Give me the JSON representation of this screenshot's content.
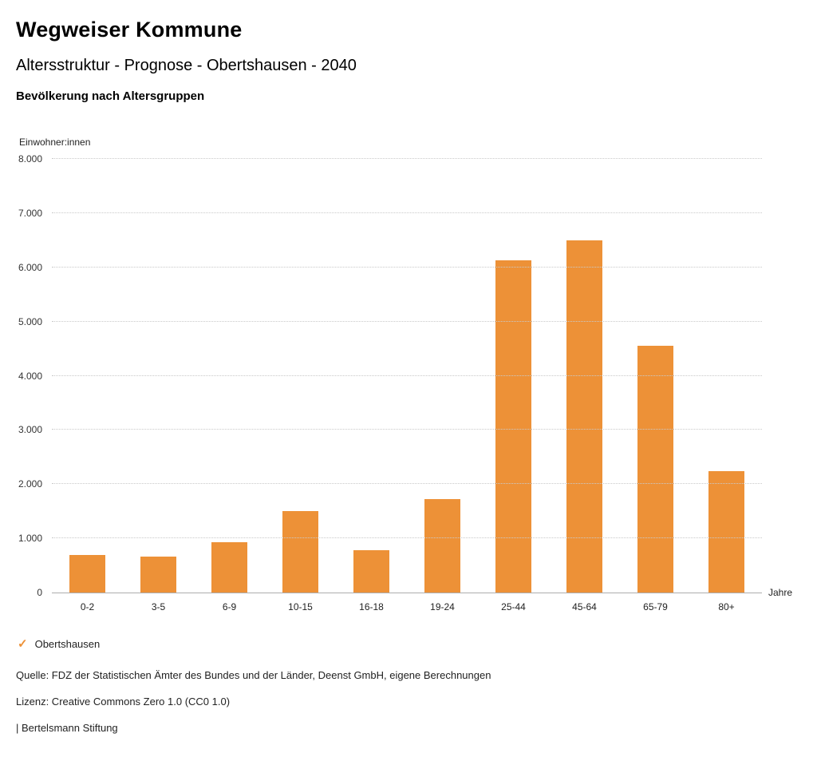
{
  "header": {
    "title": "Wegweiser Kommune",
    "subtitle": "Altersstruktur - Prognose - Obertshausen - 2040",
    "section_title": "Bevölkerung nach Altersgruppen"
  },
  "chart_data": {
    "type": "bar",
    "title": "Bevölkerung nach Altersgruppen",
    "ylabel": "Einwohner:innen",
    "xlabel": "Jahre",
    "categories": [
      "0-2",
      "3-5",
      "6-9",
      "10-15",
      "16-18",
      "19-24",
      "25-44",
      "45-64",
      "65-79",
      "80+"
    ],
    "series": [
      {
        "name": "Obertshausen",
        "color": "#ED9137",
        "values": [
          700,
          670,
          930,
          1500,
          780,
          1720,
          6130,
          6500,
          4560,
          2240
        ]
      }
    ],
    "ylim": [
      0,
      8000
    ],
    "ytick_interval": 1000,
    "ytick_labels": [
      "0",
      "1.000",
      "2.000",
      "3.000",
      "4.000",
      "5.000",
      "6.000",
      "7.000",
      "8.000"
    ],
    "grid": "horizontal-dotted",
    "legend_position": "bottom-left"
  },
  "legend": {
    "items": [
      {
        "label": "Obertshausen",
        "color": "#ED9137",
        "icon": "check-icon"
      }
    ]
  },
  "footer": {
    "source": "Quelle: FDZ der Statistischen Ämter des Bundes und der Länder, Deenst GmbH, eigene Berechnungen",
    "license": "Lizenz: Creative Commons Zero 1.0 (CC0 1.0)",
    "brand": "| Bertelsmann Stiftung"
  }
}
